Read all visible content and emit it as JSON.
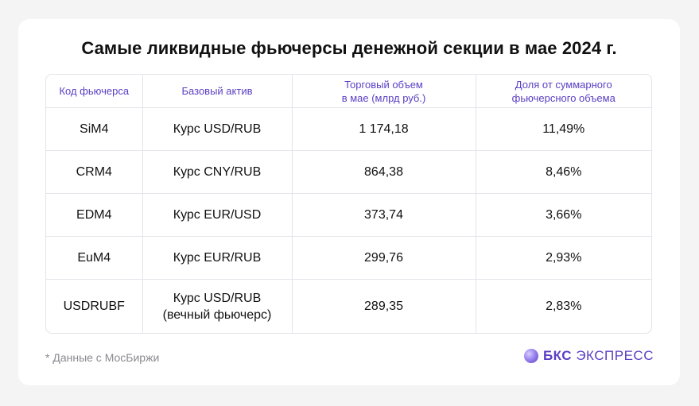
{
  "title": "Самые ликвидные фьючерсы денежной секции в мае 2024 г.",
  "table": {
    "headers": [
      "Код фьючерса",
      "Базовый актив",
      "Торговый объем\nв мае (млрд руб.)",
      "Доля от суммарного\nфьючерсного объема"
    ],
    "rows": [
      [
        "SiM4",
        "Курс USD/RUB",
        "1 174,18",
        "11,49%"
      ],
      [
        "CRM4",
        "Курс CNY/RUB",
        "864,38",
        "8,46%"
      ],
      [
        "EDM4",
        "Курс EUR/USD",
        "373,74",
        "3,66%"
      ],
      [
        "EuM4",
        "Курс EUR/RUB",
        "299,76",
        "2,93%"
      ],
      [
        "USDRUBF",
        "Курс USD/RUB\n(вечный фьючерс)",
        "289,35",
        "2,83%"
      ]
    ]
  },
  "footnote": "* Данные с МосБиржи",
  "logo": {
    "brand": "БКС",
    "product": "ЭКСПРЕСС",
    "icon": "bks-sphere-logo-icon",
    "color": "#5b3fc4"
  }
}
